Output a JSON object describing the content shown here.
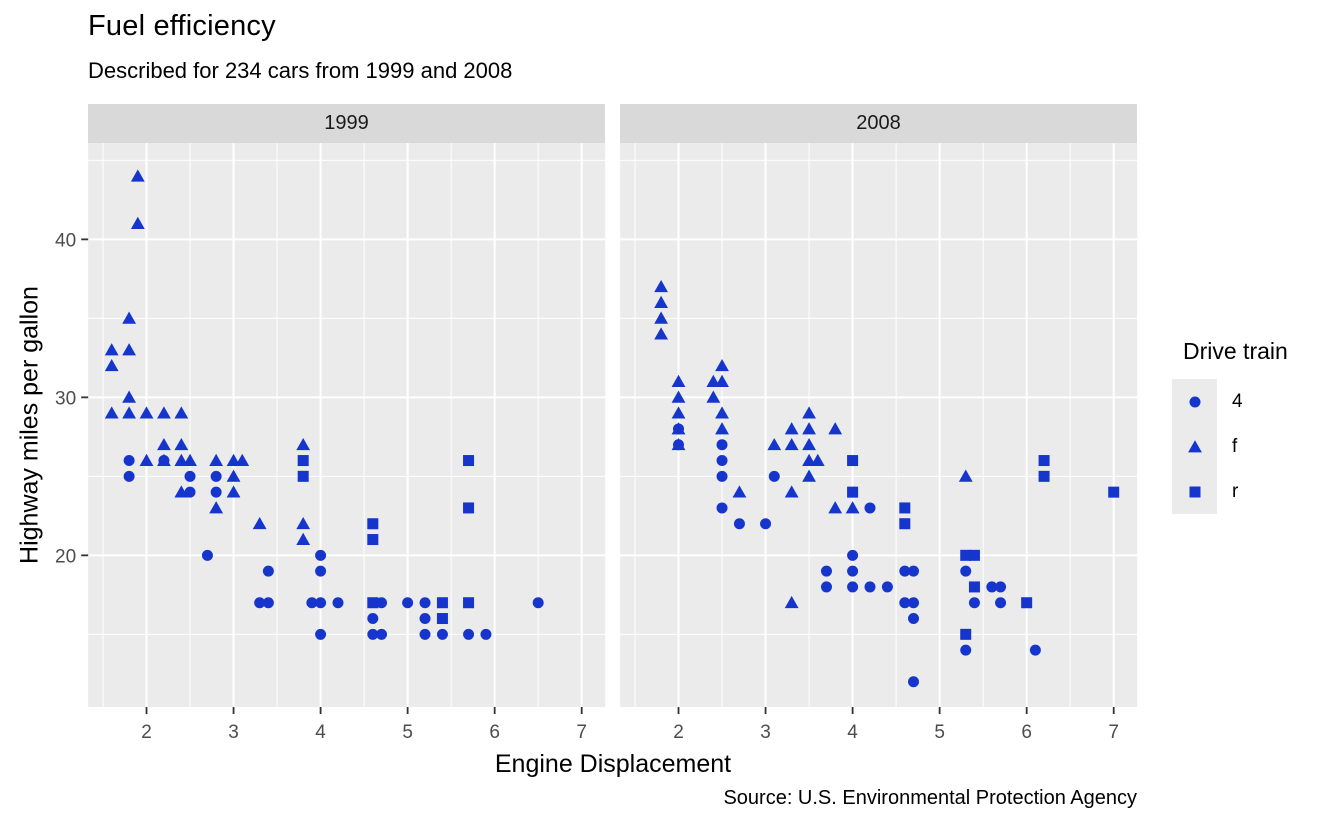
{
  "title": "Fuel efficiency",
  "subtitle": "Described for 234 cars from 1999 and 2008",
  "caption": "Source: U.S. Environmental Protection Agency",
  "axes": {
    "x_title": "Engine Displacement",
    "y_title": "Highway miles per gallon",
    "x_major_ticks": [
      2,
      3,
      4,
      5,
      6,
      7
    ],
    "x_minor_ticks": [
      1.5,
      2.5,
      3.5,
      4.5,
      5.5,
      6.5
    ],
    "y_major_ticks": [
      20,
      30,
      40
    ],
    "y_minor_ticks": [
      15,
      25,
      35,
      45
    ]
  },
  "legend": {
    "title": "Drive train",
    "items": [
      {
        "label": "4",
        "shape": "circle"
      },
      {
        "label": "f",
        "shape": "triangle"
      },
      {
        "label": "r",
        "shape": "square"
      }
    ]
  },
  "colors": {
    "point": "#1535cd",
    "panel_bg": "#ebebeb",
    "strip_bg": "#d9d9d9",
    "grid": "#ffffff",
    "tick_text": "#4d4d4d",
    "tick_mark": "#333333",
    "text": "#000000"
  },
  "chart_data": {
    "type": "scatter",
    "title": "Fuel efficiency",
    "xlabel": "Engine Displacement",
    "ylabel": "Highway miles per gallon",
    "x_domain": [
      1.33,
      7.27
    ],
    "y_domain": [
      10.4,
      46.1
    ],
    "grid": true,
    "legend_position": "right",
    "shape_map": {
      "4": "circle",
      "f": "triangle",
      "r": "square"
    },
    "facets": [
      {
        "label": "1999",
        "points": [
          [
            1.8,
            26,
            "4"
          ],
          [
            1.8,
            25,
            "4"
          ],
          [
            2.2,
            26,
            "4"
          ],
          [
            2.5,
            25,
            "4"
          ],
          [
            2.5,
            24,
            "4"
          ],
          [
            2.8,
            25,
            "4"
          ],
          [
            2.8,
            24,
            "4"
          ],
          [
            2.7,
            20,
            "4"
          ],
          [
            3.4,
            19,
            "4"
          ],
          [
            3.3,
            17,
            "4"
          ],
          [
            3.4,
            17,
            "4"
          ],
          [
            3.9,
            17,
            "4"
          ],
          [
            4.0,
            20,
            "4"
          ],
          [
            4.0,
            19,
            "4"
          ],
          [
            4.0,
            17,
            "4"
          ],
          [
            4.0,
            15,
            "4"
          ],
          [
            4.2,
            17,
            "4"
          ],
          [
            4.6,
            16,
            "4"
          ],
          [
            4.6,
            15,
            "4"
          ],
          [
            4.7,
            17,
            "4"
          ],
          [
            4.7,
            15,
            "4"
          ],
          [
            5.0,
            17,
            "4"
          ],
          [
            5.2,
            17,
            "4"
          ],
          [
            5.2,
            16,
            "4"
          ],
          [
            5.2,
            15,
            "4"
          ],
          [
            5.4,
            15,
            "4"
          ],
          [
            5.7,
            15,
            "4"
          ],
          [
            5.9,
            15,
            "4"
          ],
          [
            6.5,
            17,
            "4"
          ],
          [
            1.6,
            33,
            "f"
          ],
          [
            1.6,
            32,
            "f"
          ],
          [
            1.6,
            29,
            "f"
          ],
          [
            1.8,
            35,
            "f"
          ],
          [
            1.8,
            33,
            "f"
          ],
          [
            1.8,
            30,
            "f"
          ],
          [
            1.8,
            29,
            "f"
          ],
          [
            1.9,
            44,
            "f"
          ],
          [
            1.9,
            41,
            "f"
          ],
          [
            2.0,
            29,
            "f"
          ],
          [
            2.0,
            26,
            "f"
          ],
          [
            2.2,
            29,
            "f"
          ],
          [
            2.2,
            27,
            "f"
          ],
          [
            2.2,
            26,
            "f"
          ],
          [
            2.4,
            29,
            "f"
          ],
          [
            2.4,
            27,
            "f"
          ],
          [
            2.4,
            26,
            "f"
          ],
          [
            2.4,
            24,
            "f"
          ],
          [
            2.5,
            26,
            "f"
          ],
          [
            2.8,
            26,
            "f"
          ],
          [
            2.8,
            23,
            "f"
          ],
          [
            3.0,
            26,
            "f"
          ],
          [
            3.0,
            25,
            "f"
          ],
          [
            3.0,
            24,
            "f"
          ],
          [
            3.1,
            26,
            "f"
          ],
          [
            3.3,
            22,
            "f"
          ],
          [
            3.8,
            27,
            "f"
          ],
          [
            3.8,
            22,
            "f"
          ],
          [
            3.8,
            21,
            "f"
          ],
          [
            3.8,
            26,
            "r"
          ],
          [
            3.8,
            25,
            "r"
          ],
          [
            4.6,
            22,
            "r"
          ],
          [
            4.6,
            21,
            "r"
          ],
          [
            4.6,
            17,
            "r"
          ],
          [
            5.4,
            17,
            "r"
          ],
          [
            5.4,
            16,
            "r"
          ],
          [
            5.7,
            26,
            "r"
          ],
          [
            5.7,
            23,
            "r"
          ],
          [
            5.7,
            17,
            "r"
          ]
        ]
      },
      {
        "label": "2008",
        "points": [
          [
            2.0,
            28,
            "4"
          ],
          [
            2.0,
            27,
            "4"
          ],
          [
            2.5,
            27,
            "4"
          ],
          [
            2.5,
            26,
            "4"
          ],
          [
            2.5,
            25,
            "4"
          ],
          [
            2.5,
            23,
            "4"
          ],
          [
            2.7,
            22,
            "4"
          ],
          [
            3.0,
            22,
            "4"
          ],
          [
            3.1,
            25,
            "4"
          ],
          [
            3.7,
            19,
            "4"
          ],
          [
            3.7,
            18,
            "4"
          ],
          [
            4.0,
            20,
            "4"
          ],
          [
            4.0,
            19,
            "4"
          ],
          [
            4.0,
            18,
            "4"
          ],
          [
            4.2,
            23,
            "4"
          ],
          [
            4.2,
            18,
            "4"
          ],
          [
            4.4,
            18,
            "4"
          ],
          [
            4.6,
            19,
            "4"
          ],
          [
            4.6,
            17,
            "4"
          ],
          [
            4.7,
            19,
            "4"
          ],
          [
            4.7,
            17,
            "4"
          ],
          [
            4.7,
            16,
            "4"
          ],
          [
            4.7,
            12,
            "4"
          ],
          [
            5.3,
            19,
            "4"
          ],
          [
            5.3,
            14,
            "4"
          ],
          [
            5.4,
            17,
            "4"
          ],
          [
            5.6,
            18,
            "4"
          ],
          [
            5.7,
            18,
            "4"
          ],
          [
            5.7,
            17,
            "4"
          ],
          [
            6.1,
            14,
            "4"
          ],
          [
            1.8,
            37,
            "f"
          ],
          [
            1.8,
            36,
            "f"
          ],
          [
            1.8,
            35,
            "f"
          ],
          [
            1.8,
            34,
            "f"
          ],
          [
            2.0,
            31,
            "f"
          ],
          [
            2.0,
            30,
            "f"
          ],
          [
            2.0,
            29,
            "f"
          ],
          [
            2.0,
            28,
            "f"
          ],
          [
            2.0,
            27,
            "f"
          ],
          [
            2.4,
            31,
            "f"
          ],
          [
            2.4,
            30,
            "f"
          ],
          [
            2.5,
            32,
            "f"
          ],
          [
            2.5,
            31,
            "f"
          ],
          [
            2.5,
            29,
            "f"
          ],
          [
            2.5,
            28,
            "f"
          ],
          [
            2.7,
            24,
            "f"
          ],
          [
            3.1,
            27,
            "f"
          ],
          [
            3.3,
            28,
            "f"
          ],
          [
            3.3,
            27,
            "f"
          ],
          [
            3.3,
            24,
            "f"
          ],
          [
            3.3,
            17,
            "f"
          ],
          [
            3.5,
            29,
            "f"
          ],
          [
            3.5,
            28,
            "f"
          ],
          [
            3.5,
            27,
            "f"
          ],
          [
            3.5,
            26,
            "f"
          ],
          [
            3.5,
            25,
            "f"
          ],
          [
            3.6,
            26,
            "f"
          ],
          [
            3.8,
            28,
            "f"
          ],
          [
            3.8,
            23,
            "f"
          ],
          [
            4.0,
            23,
            "f"
          ],
          [
            5.3,
            25,
            "f"
          ],
          [
            4.0,
            26,
            "r"
          ],
          [
            4.0,
            24,
            "r"
          ],
          [
            4.6,
            23,
            "r"
          ],
          [
            4.6,
            22,
            "r"
          ],
          [
            5.3,
            20,
            "r"
          ],
          [
            5.4,
            20,
            "r"
          ],
          [
            5.3,
            15,
            "r"
          ],
          [
            5.4,
            18,
            "r"
          ],
          [
            6.0,
            17,
            "r"
          ],
          [
            6.2,
            26,
            "r"
          ],
          [
            6.2,
            25,
            "r"
          ],
          [
            7.0,
            24,
            "r"
          ]
        ]
      }
    ]
  }
}
